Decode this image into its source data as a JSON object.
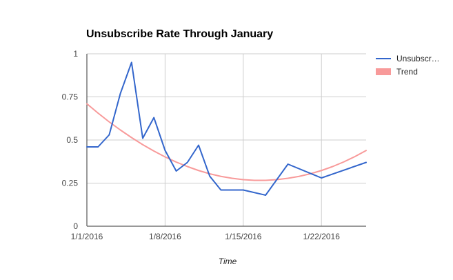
{
  "chart_data": {
    "type": "line",
    "title": "Unsubscribe Rate Through January",
    "xlabel": "Time",
    "ylabel": "",
    "ylim": [
      0,
      1
    ],
    "xlim": [
      "2016-01-01",
      "2016-01-26"
    ],
    "y_ticks": [
      "0",
      "0.25",
      "0.5",
      "0.75",
      "1"
    ],
    "x_ticks": [
      "1/1/2016",
      "1/8/2016",
      "1/15/2016",
      "1/22/2016"
    ],
    "x_tick_dates": [
      "2016-01-01",
      "2016-01-08",
      "2016-01-15",
      "2016-01-22"
    ],
    "grid": true,
    "legend_position": "right",
    "series": [
      {
        "name": "Unsubscr…",
        "color": "#3366cc",
        "x": [
          "2016-01-01",
          "2016-01-02",
          "2016-01-03",
          "2016-01-04",
          "2016-01-05",
          "2016-01-06",
          "2016-01-07",
          "2016-01-08",
          "2016-01-09",
          "2016-01-10",
          "2016-01-11",
          "2016-01-12",
          "2016-01-13",
          "2016-01-15",
          "2016-01-17",
          "2016-01-19",
          "2016-01-22",
          "2016-01-26"
        ],
        "values": [
          0.46,
          0.46,
          0.53,
          0.77,
          0.95,
          0.51,
          0.63,
          0.44,
          0.32,
          0.37,
          0.47,
          0.29,
          0.21,
          0.21,
          0.18,
          0.36,
          0.28,
          0.37
        ]
      },
      {
        "name": "Trend",
        "color": "#f89a9a",
        "x": [
          "2016-01-01",
          "2016-01-02",
          "2016-01-03",
          "2016-01-04",
          "2016-01-05",
          "2016-01-06",
          "2016-01-07",
          "2016-01-08",
          "2016-01-09",
          "2016-01-10",
          "2016-01-11",
          "2016-01-12",
          "2016-01-13",
          "2016-01-14",
          "2016-01-15",
          "2016-01-16",
          "2016-01-17",
          "2016-01-18",
          "2016-01-19",
          "2016-01-20",
          "2016-01-21",
          "2016-01-22",
          "2016-01-23",
          "2016-01-24",
          "2016-01-25",
          "2016-01-26"
        ],
        "values": [
          0.71,
          0.656,
          0.605,
          0.558,
          0.514,
          0.473,
          0.436,
          0.402,
          0.372,
          0.346,
          0.323,
          0.304,
          0.289,
          0.278,
          0.27,
          0.266,
          0.266,
          0.27,
          0.278,
          0.289,
          0.304,
          0.323,
          0.346,
          0.373,
          0.404,
          0.439
        ]
      }
    ]
  }
}
